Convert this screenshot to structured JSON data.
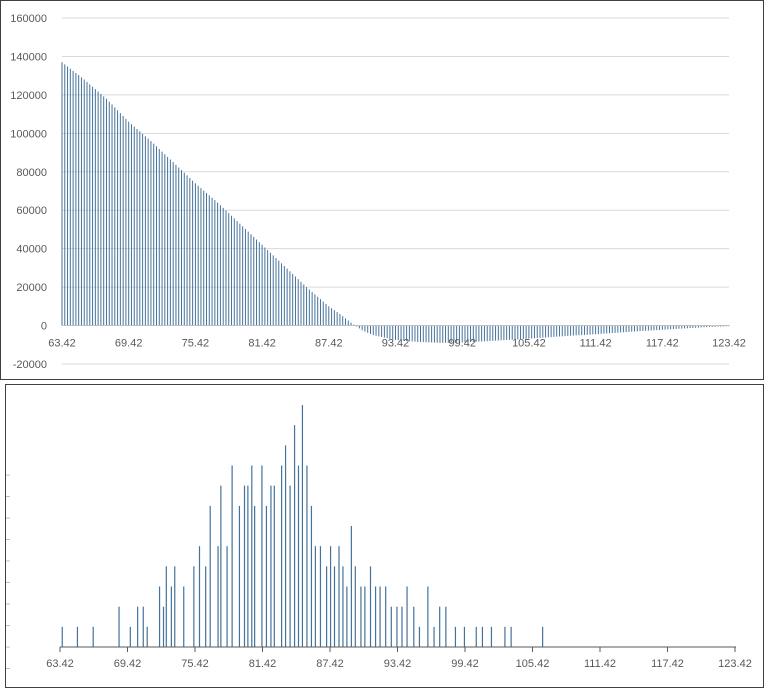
{
  "colors": {
    "bar": "#44729a",
    "grid": "#d9d9d9",
    "axis": "#595959",
    "border": "#404040"
  },
  "chart_data": [
    {
      "type": "bar",
      "title": "",
      "xlabel": "",
      "ylabel": "",
      "x_range": [
        63.42,
        123.42
      ],
      "x_tick_labels": [
        "63.42",
        "69.42",
        "75.42",
        "81.42",
        "87.42",
        "93.42",
        "99.42",
        "105.42",
        "111.42",
        "117.42",
        "123.42"
      ],
      "y_tick_labels": [
        "160000",
        "140000",
        "120000",
        "100000",
        "80000",
        "60000",
        "40000",
        "20000",
        "0",
        "-20000"
      ],
      "ylim": [
        -20000,
        160000
      ],
      "grid": true,
      "series": [
        {
          "x": [
            63.42,
            65.42,
            67.42,
            69.42,
            71.42,
            73.42,
            75.42,
            77.42,
            79.42,
            81.42,
            83.42,
            85.42,
            87.42,
            88.42,
            89.42,
            90.42,
            91.42,
            93.42,
            95.42,
            97.42,
            99.42,
            101.42,
            103.42,
            105.42,
            107.42,
            109.42,
            111.42,
            113.42,
            115.42,
            117.42,
            119.42,
            121.42,
            123.42
          ],
          "values": [
            137000,
            128000,
            118000,
            106000,
            96000,
            85000,
            74000,
            64000,
            53000,
            42000,
            31000,
            20000,
            10000,
            6000,
            1500,
            -2500,
            -5000,
            -7500,
            -8500,
            -9000,
            -8800,
            -8200,
            -7500,
            -6800,
            -6000,
            -5200,
            -4500,
            -3700,
            -2900,
            -2200,
            -1500,
            -800,
            -300
          ]
        }
      ]
    },
    {
      "type": "bar",
      "title": "",
      "xlabel": "",
      "ylabel": "",
      "x_range": [
        63.42,
        123.42
      ],
      "x_tick_labels": [
        "63.42",
        "69.42",
        "75.42",
        "81.42",
        "87.42",
        "93.42",
        "99.42",
        "105.42",
        "111.42",
        "117.42",
        "123.42"
      ],
      "ylim": [
        0,
        12
      ],
      "grid": false,
      "series": [
        {
          "x": [
            63.62,
            64.97,
            66.37,
            68.67,
            69.67,
            70.32,
            70.82,
            71.17,
            72.27,
            72.62,
            72.87,
            73.32,
            73.62,
            74.42,
            75.32,
            75.82,
            76.37,
            76.77,
            77.47,
            77.72,
            78.27,
            78.72,
            79.37,
            79.82,
            80.12,
            80.47,
            80.72,
            81.37,
            81.77,
            82.17,
            82.47,
            83.12,
            83.47,
            83.87,
            84.27,
            84.62,
            84.97,
            85.37,
            85.77,
            86.12,
            86.57,
            87.12,
            87.47,
            87.82,
            88.22,
            88.57,
            88.92,
            89.32,
            89.67,
            90.17,
            90.52,
            91.02,
            91.47,
            91.87,
            92.37,
            92.87,
            93.37,
            93.82,
            94.27,
            94.87,
            95.37,
            96.12,
            96.67,
            97.17,
            97.72,
            98.57,
            99.37,
            100.42,
            100.97,
            101.77,
            102.97,
            103.52,
            106.32
          ],
          "values": [
            1,
            1,
            1,
            2,
            1,
            2,
            2,
            1,
            3,
            2,
            4,
            3,
            4,
            3,
            4,
            5,
            4,
            7,
            5,
            8,
            5,
            9,
            7,
            8,
            8,
            9,
            7,
            9,
            7,
            8,
            8,
            9,
            10,
            8,
            11,
            9,
            12,
            9,
            7,
            5,
            5,
            4,
            5,
            4,
            5,
            4,
            3,
            6,
            4,
            3,
            3,
            4,
            3,
            3,
            3,
            2,
            2,
            2,
            3,
            2,
            1,
            3,
            1,
            2,
            2,
            1,
            1,
            1,
            1,
            1,
            1,
            1,
            1
          ]
        }
      ]
    }
  ]
}
